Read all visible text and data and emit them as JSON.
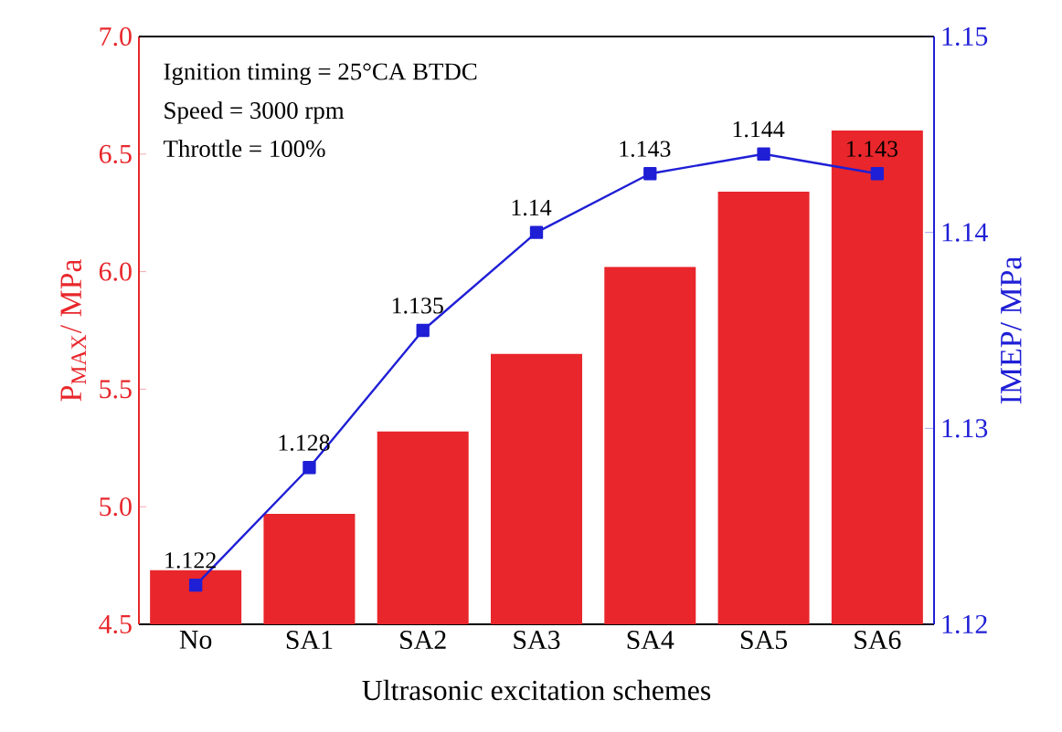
{
  "chart_data": {
    "type": "bar",
    "xlabel": "Ultrasonic excitation schemes",
    "ylabel": "P$_{MAX}$/ MPa",
    "y2label": "IMEP/ MPa",
    "categories": [
      "No",
      "SA1",
      "SA2",
      "SA3",
      "SA4",
      "SA5",
      "SA6"
    ],
    "series": [
      {
        "color": "#e8262b",
        "values": [
          4.73,
          4.97,
          5.32,
          5.65,
          6.02,
          6.34,
          6.6
        ]
      },
      {
        "type": "line",
        "axis": "y2",
        "color": "#1f1fd6",
        "marker": "square",
        "values": [
          1.122,
          1.128,
          1.135,
          1.14,
          1.143,
          1.144,
          1.143
        ],
        "value_labels": [
          "1.122",
          "1.128",
          "1.135",
          "1.14",
          "1.143",
          "1.144",
          "1.143"
        ]
      }
    ],
    "ylim": [
      4.5,
      7.0
    ],
    "yticks": [
      {
        "value": 4.5,
        "label": "4.5"
      },
      {
        "value": 5.0,
        "label": "5.0"
      },
      {
        "value": 5.5,
        "label": "5.5"
      },
      {
        "value": 6.0,
        "label": "6.0"
      },
      {
        "value": 6.5,
        "label": "6.5"
      },
      {
        "value": 7.0,
        "label": "7.0"
      }
    ],
    "y2lim": [
      1.12,
      1.15
    ],
    "y2ticks": [
      1.12,
      1.13,
      1.14,
      1.15
    ],
    "annotations": [
      "Ignition timing = 25°CA BTDC",
      "Speed = 3000 rpm",
      "Throttle = 100%"
    ],
    "grid": false
  }
}
